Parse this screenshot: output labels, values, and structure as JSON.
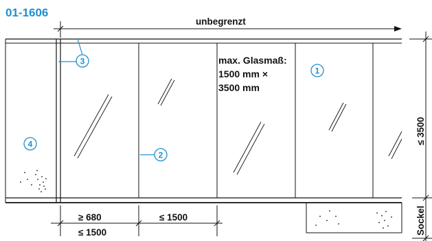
{
  "title": "01-1606",
  "top_dimension_label": "unbegrenzt",
  "glass_max_lines": [
    "max. Glasmaß:",
    "1500 mm ×",
    "3500 mm"
  ],
  "right_dimension_label": "≤ 3500",
  "right_base_label": "Sockel",
  "bottom_dim_first_top": "≥ 680",
  "bottom_dim_first_bottom": "≤ 1500",
  "bottom_dim_second": "≤ 1500",
  "callouts": [
    "1",
    "2",
    "3",
    "4"
  ],
  "colors": {
    "title": "#1f8fce",
    "callout": "#1f8fce",
    "lines": "#111111"
  }
}
